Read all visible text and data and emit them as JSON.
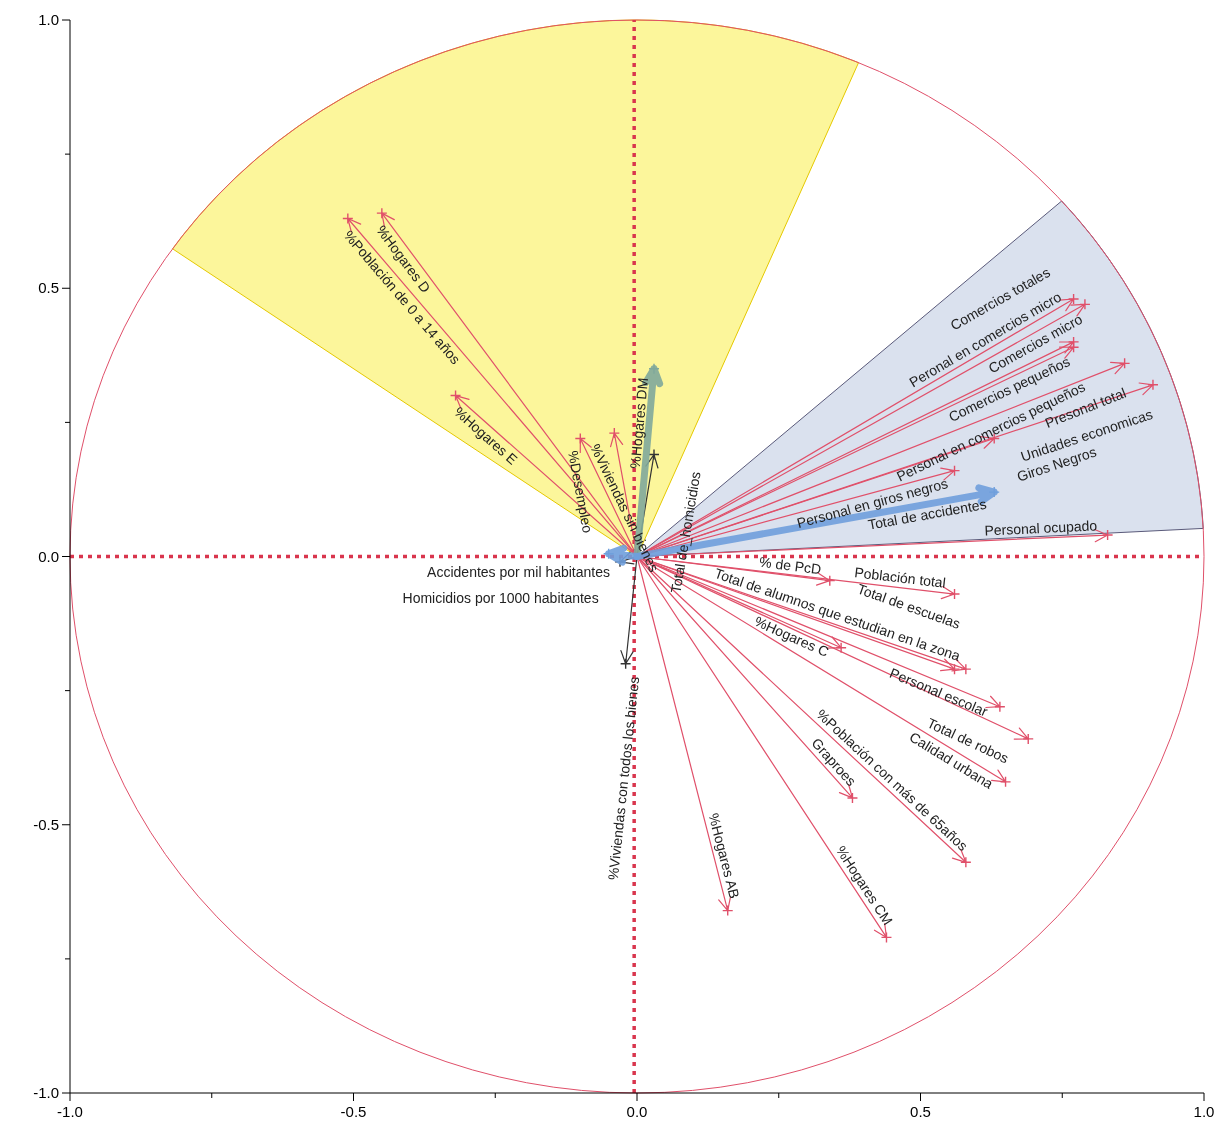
{
  "chart_data": {
    "type": "scatter",
    "marker": "cross",
    "xlim": [
      -1,
      1
    ],
    "ylim": [
      -1,
      1
    ],
    "xticks": [
      {
        "value": -1,
        "label": "-1.0"
      },
      {
        "value": -0.75,
        "label": null
      },
      {
        "value": -0.5,
        "label": "-0.5"
      },
      {
        "value": -0.25,
        "label": null
      },
      {
        "value": 0,
        "label": "0.0"
      },
      {
        "value": 0.25,
        "label": null
      },
      {
        "value": 0.5,
        "label": "0.5"
      },
      {
        "value": 0.75,
        "label": null
      },
      {
        "value": 1,
        "label": "1.0"
      }
    ],
    "yticks": [
      {
        "value": -1,
        "label": "-1.0"
      },
      {
        "value": -0.75,
        "label": null
      },
      {
        "value": -0.5,
        "label": "-0.5"
      },
      {
        "value": -0.25,
        "label": null
      },
      {
        "value": 0,
        "label": "0.0"
      },
      {
        "value": 0.25,
        "label": null
      },
      {
        "value": 0.5,
        "label": "0.5"
      },
      {
        "value": 0.75,
        "label": null
      },
      {
        "value": 1,
        "label": "1.0"
      }
    ],
    "ref_lines": [
      {
        "axis": "x",
        "value": -0.005,
        "color": "#d9354d",
        "line_style": "dotted"
      },
      {
        "axis": "y",
        "value": 0,
        "color": "#d9354d",
        "line_style": "dotted"
      }
    ],
    "series": [
      {
        "color": "#e0506a",
        "x": [
          -0.51,
          -0.45,
          -0.32,
          -0.1,
          -0.04,
          0.77,
          0.79,
          0.77,
          0.77,
          0.86,
          0.91,
          0.63,
          0.56,
          0.83,
          0.34,
          0.56,
          0.58,
          0.56,
          0.36,
          0.64,
          0.69,
          0.65,
          0.38,
          0.58,
          0.16,
          0.44
        ],
        "values": [
          0.63,
          0.64,
          0.3,
          0.22,
          0.23,
          0.48,
          0.47,
          0.39,
          0.4,
          0.36,
          0.32,
          0.22,
          0.16,
          0.04,
          -0.045,
          -0.07,
          -0.21,
          -0.21,
          -0.17,
          -0.28,
          -0.34,
          -0.42,
          -0.45,
          -0.57,
          -0.66,
          -0.71
        ]
      },
      {
        "color": "#333333",
        "x": [
          0.03,
          -0.02,
          -0.03
        ],
        "values": [
          0.19,
          -0.2,
          -0.01
        ]
      },
      {
        "color": "#7fa89b",
        "x": [
          0.03
        ],
        "values": [
          0.35
        ]
      },
      {
        "color": "#6f9fdc",
        "x": [
          0.63,
          -0.05
        ],
        "values": [
          0.12,
          0.005
        ]
      }
    ],
    "annotations": [
      {
        "text": "%Población de 0 a 14 años",
        "x": -0.51,
        "y": 0.63
      },
      {
        "text": "%Hogares D",
        "x": -0.45,
        "y": 0.64
      },
      {
        "text": "%Hogares E",
        "x": -0.32,
        "y": 0.3
      },
      {
        "text": "%Viviendas  sin bienes",
        "x": -0.1,
        "y": 0.22
      },
      {
        "text": "%Desempleo",
        "x": -0.04,
        "y": 0.23
      },
      {
        "text": "Peronal en comercios micro",
        "x": 0.77,
        "y": 0.48
      },
      {
        "text": "Comercios micro",
        "x": 0.79,
        "y": 0.47
      },
      {
        "text": "Comercios totales",
        "x": 0.78,
        "y": 0.47
      },
      {
        "text": "Comercios pequeños",
        "x": 0.77,
        "y": 0.39
      },
      {
        "text": "Personal en comercios pequeños",
        "x": 0.77,
        "y": 0.4
      },
      {
        "text": "Presonal total",
        "x": 0.86,
        "y": 0.36
      },
      {
        "text": "Unidades economicas",
        "x": 0.91,
        "y": 0.32
      },
      {
        "text": "Giros Negros",
        "x": 0.63,
        "y": 0.22
      },
      {
        "text": "Personal en giros negros",
        "x": 0.56,
        "y": 0.16
      },
      {
        "text": "Personal ocupado",
        "x": 0.83,
        "y": 0.04
      },
      {
        "text": "% de PcD",
        "x": 0.34,
        "y": -0.045
      },
      {
        "text": "Población total",
        "x": 0.56,
        "y": -0.07
      },
      {
        "text": "Total de alumnos que estudian en la zona",
        "x": 0.58,
        "y": -0.21
      },
      {
        "text": "Total de escuelas",
        "x": 0.56,
        "y": -0.21
      },
      {
        "text": "%Hogares C",
        "x": 0.36,
        "y": -0.17
      },
      {
        "text": "Personal escolar",
        "x": 0.64,
        "y": -0.28
      },
      {
        "text": "Total de robos",
        "x": 0.69,
        "y": -0.34
      },
      {
        "text": "Calidad urbana",
        "x": 0.65,
        "y": -0.42
      },
      {
        "text": "Graproes",
        "x": 0.38,
        "y": -0.45
      },
      {
        "text": "%Población con más de 65años",
        "x": 0.58,
        "y": -0.57
      },
      {
        "text": "%Hogares AB",
        "x": 0.16,
        "y": -0.66
      },
      {
        "text": "%Hogares CM",
        "x": 0.44,
        "y": -0.71
      },
      {
        "text": "Total de_homicidios",
        "x": 0.03,
        "y": 0.19
      },
      {
        "text": "%Viviendas  con todos los bienes",
        "x": -0.02,
        "y": -0.2
      },
      {
        "text": "Accidentes por mil habitantes",
        "x": -0.03,
        "y": -0.01
      },
      {
        "text": "%Hogares DM",
        "x": 0.03,
        "y": 0.35
      },
      {
        "text": "Total de accidentes",
        "x": 0.63,
        "y": 0.12
      },
      {
        "text": "Homicidios por 1000 habitantes",
        "x": -0.05,
        "y": 0.005
      }
    ]
  }
}
